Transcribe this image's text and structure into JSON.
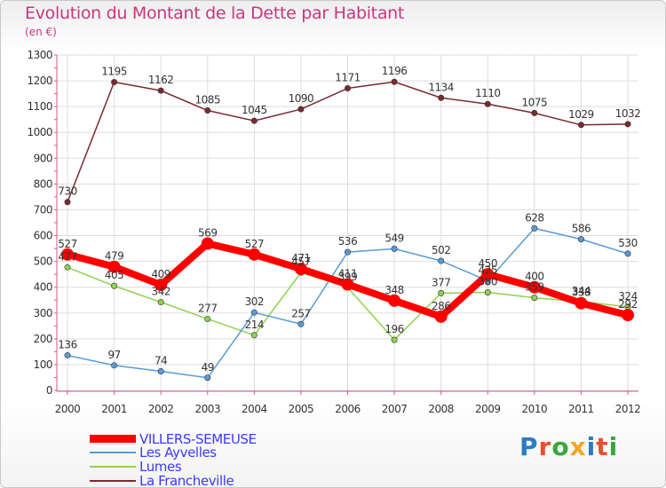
{
  "header": {
    "title": "Evolution du Montant de la Dette par Habitant",
    "subtitle": "(en €)"
  },
  "logo": {
    "text": "Proxiti",
    "letter_colors": [
      "#2b7bc1",
      "#e94f2e",
      "#3aa639",
      "#f5a623",
      "#2b7bc1",
      "#e94f2e",
      "#3aa639"
    ]
  },
  "chart_data": {
    "type": "line",
    "title": "Evolution du Montant de la Dette par Habitant",
    "subtitle": "(en €)",
    "xlabel": "",
    "ylabel": "",
    "categories": [
      "2000",
      "2001",
      "2002",
      "2003",
      "2004",
      "2005",
      "2006",
      "2007",
      "2008",
      "2009",
      "2010",
      "2011",
      "2012"
    ],
    "ylim": [
      0,
      1300
    ],
    "yticks": [
      0,
      100,
      200,
      300,
      400,
      500,
      600,
      700,
      800,
      900,
      1000,
      1100,
      1200,
      1300
    ],
    "grid": true,
    "legend_placement": "bottom-left",
    "series": [
      {
        "name": "VILLERS-SEMEUSE",
        "color": "#ff0000",
        "label_color": "#333333",
        "values": [
          527,
          479,
          409,
          569,
          527,
          471,
          411,
          348,
          286,
          450,
          400,
          338,
          292
        ],
        "labels": [
          "527",
          "479",
          "409",
          "569",
          "527",
          "471",
          "411",
          "348",
          "286",
          "450",
          "400",
          "338",
          "292"
        ]
      },
      {
        "name": "Les Ayvelles",
        "color": "#5b9bd5",
        "label_color": "#333333",
        "values": [
          136,
          97,
          74,
          49,
          302,
          257,
          536,
          549,
          502,
          425,
          628,
          586,
          530
        ],
        "labels": [
          "136",
          "97",
          "74",
          "49",
          "302",
          "257",
          "536",
          "549",
          "502",
          "425",
          "628",
          "586",
          "530"
        ]
      },
      {
        "name": "Lumes",
        "color": "#8fd14f",
        "label_color": "#333333",
        "values": [
          477,
          405,
          342,
          277,
          214,
          457,
          399,
          196,
          377,
          380,
          359,
          344,
          324
        ],
        "labels": [
          "477",
          "405",
          "342",
          "277",
          "214",
          "457",
          "399",
          "196",
          "377",
          "380",
          "359",
          "344",
          "324"
        ]
      },
      {
        "name": "La Francheville",
        "color": "#7b2a2f",
        "label_color": "#333333",
        "values": [
          730,
          1195,
          1162,
          1085,
          1045,
          1090,
          1171,
          1196,
          1134,
          1110,
          1075,
          1029,
          1032
        ],
        "labels": [
          "730",
          "1195",
          "1162",
          "1085",
          "1045",
          "1090",
          "1171",
          "1196",
          "1134",
          "1110",
          "1075",
          "1029",
          "1032"
        ]
      }
    ]
  }
}
